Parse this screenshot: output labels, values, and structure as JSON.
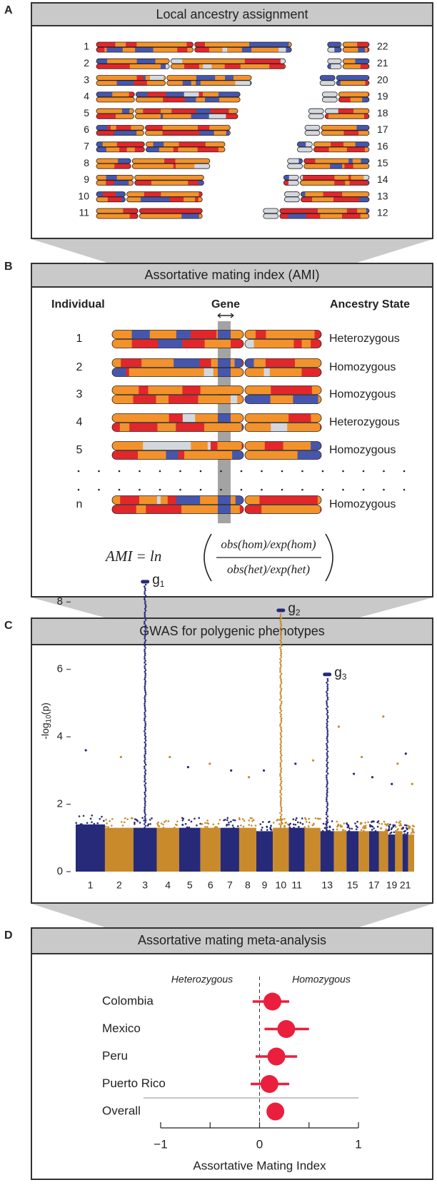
{
  "panels": {
    "a": {
      "label": "A",
      "title": "Local ancestry assignment",
      "left_labels": [
        "1",
        "2",
        "3",
        "4",
        "5",
        "6",
        "7",
        "8",
        "9",
        "10",
        "11"
      ],
      "right_labels": [
        "22",
        "21",
        "20",
        "19",
        "18",
        "17",
        "16",
        "15",
        "14",
        "13",
        "12"
      ]
    },
    "b": {
      "label": "B",
      "title": "Assortative mating index (AMI)",
      "header_individual": "Individual",
      "header_gene": "Gene",
      "header_state": "Ancestry State",
      "individuals": [
        "1",
        "2",
        "3",
        "4",
        "5",
        "n"
      ],
      "states": [
        "Heterozygous",
        "Homozygous",
        "Homozygous",
        "Heterozygous",
        "Homozygous",
        "Homozygous"
      ],
      "formula": {
        "lhs": "AMI = ln",
        "numerator": "obs(hom)/exp(hom)",
        "denominator": "obs(het)/exp(het)"
      }
    },
    "c": {
      "label": "C"
    },
    "d": {
      "label": "D"
    }
  },
  "chart_data": [
    {
      "type": "manhattan",
      "title": "GWAS for polygenic phenotypes",
      "ylabel": [
        "-log",
        "10",
        "(p)"
      ],
      "categories": [
        "1",
        "2",
        "3",
        "4",
        "5",
        "6",
        "7",
        "8",
        "9",
        "10",
        "11",
        null,
        "13",
        null,
        "15",
        null,
        "17",
        null,
        "19",
        null,
        "21",
        null
      ],
      "values": [
        1.4,
        1.3,
        1.3,
        1.3,
        1.3,
        1.3,
        1.3,
        1.3,
        1.2,
        1.3,
        1.3,
        1.3,
        1.2,
        1.2,
        1.2,
        1.2,
        1.2,
        1.2,
        1.1,
        1.2,
        1.1,
        1.1
      ],
      "max": [
        3.6,
        3.4,
        null,
        3.4,
        3.1,
        3.2,
        3.0,
        2.8,
        3.0,
        null,
        3.2,
        3.3,
        null,
        4.3,
        2.9,
        3.4,
        2.8,
        4.6,
        2.6,
        3.2,
        3.5,
        2.6
      ],
      "colors": [
        "#262a78",
        "#c98a2c"
      ],
      "peaks": [
        {
          "chromosome": "3",
          "value": 8.6,
          "label": "g",
          "sub": "1"
        },
        {
          "chromosome": "10",
          "value": 7.75,
          "label": "g",
          "sub": "2"
        },
        {
          "chromosome": "13",
          "value": 5.85,
          "label": "g",
          "sub": "3"
        }
      ],
      "ylim": [
        0,
        9
      ],
      "yticks": [
        0,
        2,
        4,
        6,
        8
      ]
    },
    {
      "type": "forest",
      "title": "Assortative mating meta-analysis",
      "categories": [
        "Colombia",
        "Mexico",
        "Peru",
        "Puerto Rico",
        "Overall"
      ],
      "values": [
        0.13,
        0.27,
        0.17,
        0.1,
        0.16
      ],
      "ci": [
        [
          -0.07,
          0.3
        ],
        [
          0.05,
          0.5
        ],
        [
          -0.04,
          0.38
        ],
        [
          -0.09,
          0.3
        ],
        null
      ],
      "xlim": [
        -1,
        1
      ],
      "xticks": [
        {
          "value": -1,
          "label": "−1"
        },
        0,
        1
      ],
      "xminor": [
        -0.5,
        0.5
      ],
      "xlabel": "Assortative Mating Index",
      "left_annotation": "Heterozygous",
      "right_annotation": "Homozygous",
      "color": "#ea1f3d"
    }
  ]
}
